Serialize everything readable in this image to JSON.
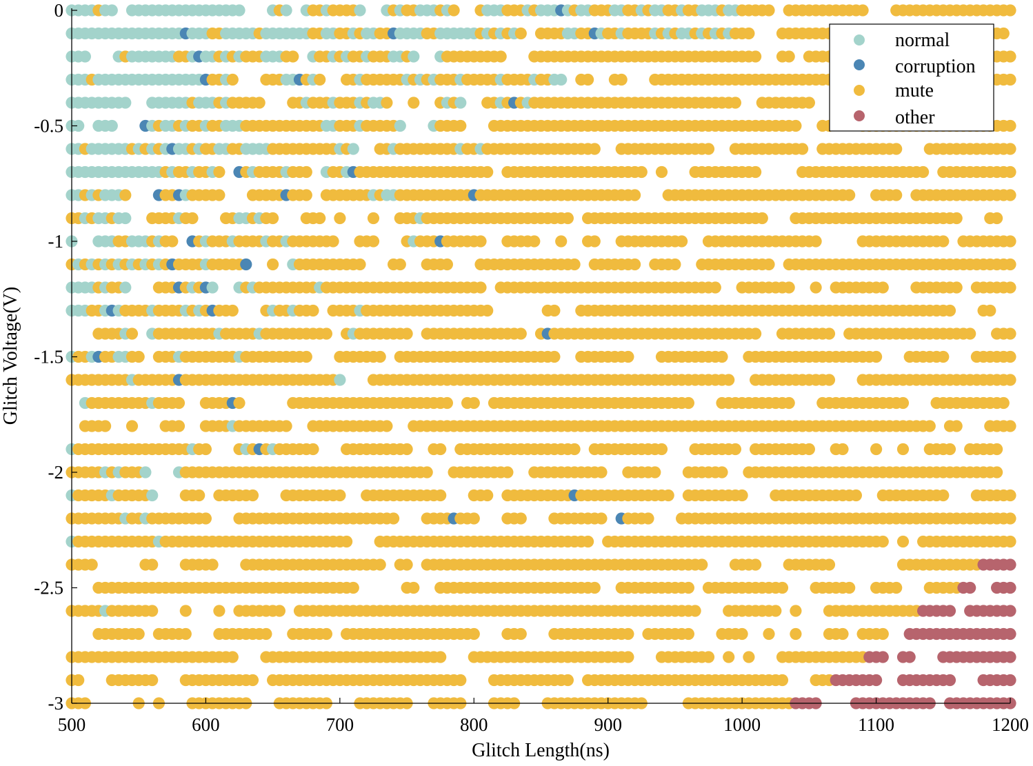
{
  "chart_data": {
    "type": "scatter",
    "title": "",
    "xlabel": "Glitch Length(ns)",
    "ylabel": "Glitch Voltage(V)",
    "xlim": [
      500,
      1200
    ],
    "ylim": [
      -3,
      0
    ],
    "xticks": [
      500,
      600,
      700,
      800,
      900,
      1000,
      1100,
      1200
    ],
    "xtick_labels": [
      "500",
      "600",
      "700",
      "800",
      "900",
      "1000",
      "1100",
      "1200"
    ],
    "yticks": [
      0,
      -0.5,
      -1,
      -1.5,
      -2,
      -2.5,
      -3
    ],
    "ytick_labels": [
      "0",
      "-0.5",
      "-1",
      "-1.5",
      "-2",
      "-2.5",
      "-3"
    ],
    "legend_position": "top-right",
    "x_step": 5,
    "y_levels": [
      0,
      -0.1,
      -0.2,
      -0.3,
      -0.4,
      -0.5,
      -0.6,
      -0.7,
      -0.8,
      -0.9,
      -1,
      -1.1,
      -1.2,
      -1.3,
      -1.4,
      -1.5,
      -1.6,
      -1.7,
      -1.8,
      -1.9,
      -2,
      -2.1,
      -2.2,
      -2.3,
      -2.4,
      -2.5,
      -2.6,
      -2.7,
      -2.8,
      -2.9,
      -3
    ],
    "series": [
      {
        "name": "normal",
        "color": "#a3d3cb"
      },
      {
        "name": "corruption",
        "color": "#4b86b4"
      },
      {
        "name": "mute",
        "color": "#f0bb3e"
      },
      {
        "name": "other",
        "color": "#b7646d"
      }
    ],
    "region_summary": [
      {
        "series": "normal",
        "description": "dominant for x < ~750 ns at y from 0 to -1.5 V, scattered down to about -2.9 V near x = 500"
      },
      {
        "series": "corruption",
        "description": "sparse points mostly between x = 520 and 920 ns, y = 0 to -2.3 V"
      },
      {
        "series": "mute",
        "description": "dominant across most of the plot, especially x > ~750 ns and y < -1.5 V"
      },
      {
        "series": "other",
        "description": "clustered at x > ~1040 ns for y = -2.4 to -3 V"
      }
    ]
  }
}
